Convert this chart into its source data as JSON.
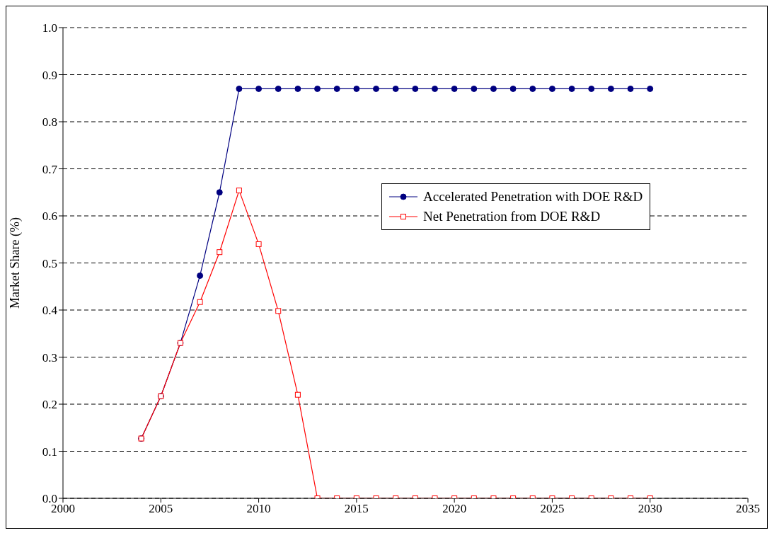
{
  "chart_data": {
    "type": "line",
    "ylabel": "Market Share (%)",
    "x": [
      2004,
      2005,
      2006,
      2007,
      2008,
      2009,
      2010,
      2011,
      2012,
      2013,
      2014,
      2015,
      2016,
      2017,
      2018,
      2019,
      2020,
      2021,
      2022,
      2023,
      2024,
      2025,
      2026,
      2027,
      2028,
      2029,
      2030
    ],
    "series": [
      {
        "name": "Accelerated Penetration with DOE R&D",
        "color": "#000080",
        "marker": "circle",
        "values": [
          0.127,
          0.217,
          0.33,
          0.473,
          0.65,
          0.87,
          0.87,
          0.87,
          0.87,
          0.87,
          0.87,
          0.87,
          0.87,
          0.87,
          0.87,
          0.87,
          0.87,
          0.87,
          0.87,
          0.87,
          0.87,
          0.87,
          0.87,
          0.87,
          0.87,
          0.87,
          0.87
        ]
      },
      {
        "name": "Net Penetration from DOE R&D",
        "color": "#ff0000",
        "marker": "square",
        "values": [
          0.127,
          0.217,
          0.33,
          0.417,
          0.523,
          0.654,
          0.54,
          0.398,
          0.22,
          0,
          0,
          0,
          0,
          0,
          0,
          0,
          0,
          0,
          0,
          0,
          0,
          0,
          0,
          0,
          0,
          0,
          0
        ]
      }
    ],
    "xlim": [
      2000,
      2035
    ],
    "xticks": [
      2000,
      2005,
      2010,
      2015,
      2020,
      2025,
      2030,
      2035
    ],
    "ylim": [
      0,
      1
    ],
    "yticks": [
      {
        "value": 0,
        "label": "0.0"
      },
      {
        "value": 0.1,
        "label": "0.1"
      },
      {
        "value": 0.2,
        "label": "0.2"
      },
      {
        "value": 0.3,
        "label": "0.3"
      },
      {
        "value": 0.4,
        "label": "0.4"
      },
      {
        "value": 0.5,
        "label": "0.5"
      },
      {
        "value": 0.6,
        "label": "0.6"
      },
      {
        "value": 0.7,
        "label": "0.7"
      },
      {
        "value": 0.8,
        "label": "0.8"
      },
      {
        "value": 0.9,
        "label": "0.9"
      },
      {
        "value": 1,
        "label": "1.0"
      }
    ],
    "grid": "y",
    "line_style": "solid",
    "legend": "right"
  }
}
